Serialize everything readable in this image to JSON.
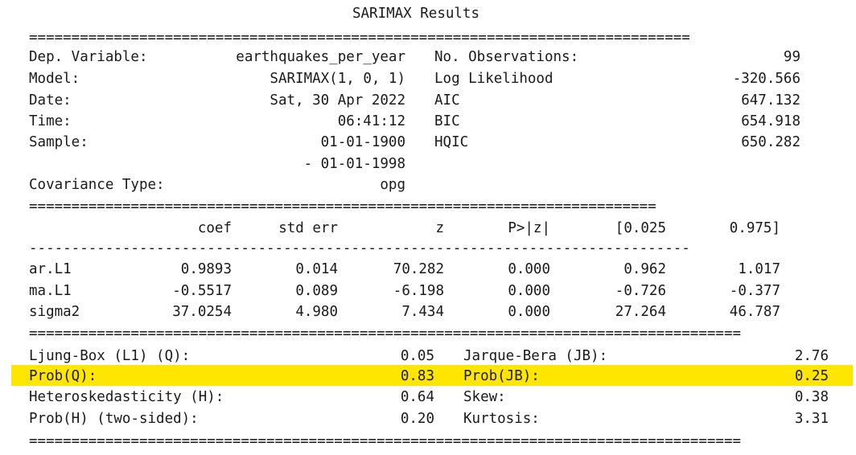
{
  "title": "SARIMAX Results",
  "rules": {
    "double": "==============================================================================",
    "double_mid": "==========================================================================",
    "double_bottom": "====================================================================================",
    "single": "------------------------------------------------------------------------------"
  },
  "summary": {
    "left": [
      {
        "label": "Dep. Variable:",
        "value": "earthquakes_per_year"
      },
      {
        "label": "Model:",
        "value": "SARIMAX(1, 0, 1)"
      },
      {
        "label": "Date:",
        "value": "Sat, 30 Apr 2022"
      },
      {
        "label": "Time:",
        "value": "06:41:12"
      },
      {
        "label": "Sample:",
        "value": "01-01-1900"
      },
      {
        "label": "",
        "value": "- 01-01-1998"
      },
      {
        "label": "Covariance Type:",
        "value": "opg"
      }
    ],
    "right": [
      {
        "label": "No. Observations:",
        "value": "99"
      },
      {
        "label": "Log Likelihood",
        "value": "-320.566"
      },
      {
        "label": "AIC",
        "value": "647.132"
      },
      {
        "label": "BIC",
        "value": "654.918"
      },
      {
        "label": "HQIC",
        "value": "650.282"
      }
    ]
  },
  "coef_table": {
    "headers": [
      "coef",
      "std err",
      "z",
      "P>|z|",
      "[0.025",
      "0.975]"
    ],
    "rows": [
      {
        "name": "ar.L1",
        "values": [
          "0.9893",
          "0.014",
          "70.282",
          "0.000",
          "0.962",
          "1.017"
        ]
      },
      {
        "name": "ma.L1",
        "values": [
          "-0.5517",
          "0.089",
          "-6.198",
          "0.000",
          "-0.726",
          "-0.377"
        ]
      },
      {
        "name": "sigma2",
        "values": [
          "37.0254",
          "4.980",
          "7.434",
          "0.000",
          "27.264",
          "46.787"
        ]
      }
    ]
  },
  "diagnostics": [
    {
      "l_label": "Ljung-Box (L1) (Q):",
      "l_value": "0.05",
      "r_label": "Jarque-Bera (JB):",
      "r_value": "2.76",
      "highlight": false
    },
    {
      "l_label": "Prob(Q):",
      "l_value": "0.83",
      "r_label": "Prob(JB):",
      "r_value": "0.25",
      "highlight": true
    },
    {
      "l_label": "Heteroskedasticity (H):",
      "l_value": "0.64",
      "r_label": "Skew:",
      "r_value": "0.38",
      "highlight": false
    },
    {
      "l_label": "Prob(H) (two-sided):",
      "l_value": "0.20",
      "r_label": "Kurtosis:",
      "r_value": "3.31",
      "highlight": false
    }
  ],
  "colors": {
    "highlight": "#ffe600",
    "text": "#1a1a1a"
  }
}
